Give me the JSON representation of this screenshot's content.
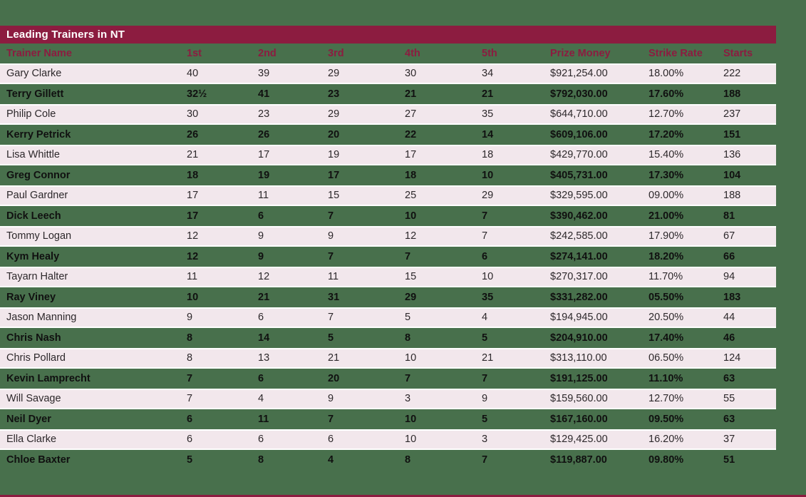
{
  "title_bar": {
    "title": "Leading Trainers in NT"
  },
  "colors": {
    "background": "#48704C",
    "accent": "#8C1C40",
    "row_alt": "#F2E7EC",
    "title_text": "#FFFFFF"
  },
  "chart_data": {
    "type": "table",
    "title": "Leading Trainers in NT",
    "columns": [
      "Trainer Name",
      "1st",
      "2nd",
      "3rd",
      "4th",
      "5th",
      "Prize Money",
      "Strike Rate",
      "Starts"
    ],
    "rows": [
      [
        "Gary Clarke",
        "40",
        "39",
        "29",
        "30",
        "34",
        "$921,254.00",
        "18.00%",
        "222"
      ],
      [
        "Terry Gillett",
        "32½",
        "41",
        "23",
        "21",
        "21",
        "$792,030.00",
        "17.60%",
        "188"
      ],
      [
        "Philip Cole",
        "30",
        "23",
        "29",
        "27",
        "35",
        "$644,710.00",
        "12.70%",
        "237"
      ],
      [
        "Kerry Petrick",
        "26",
        "26",
        "20",
        "22",
        "14",
        "$609,106.00",
        "17.20%",
        "151"
      ],
      [
        "Lisa Whittle",
        "21",
        "17",
        "19",
        "17",
        "18",
        "$429,770.00",
        "15.40%",
        "136"
      ],
      [
        "Greg Connor",
        "18",
        "19",
        "17",
        "18",
        "10",
        "$405,731.00",
        "17.30%",
        "104"
      ],
      [
        "Paul Gardner",
        "17",
        "11",
        "15",
        "25",
        "29",
        "$329,595.00",
        "09.00%",
        "188"
      ],
      [
        "Dick Leech",
        "17",
        "6",
        "7",
        "10",
        "7",
        "$390,462.00",
        "21.00%",
        "81"
      ],
      [
        "Tommy Logan",
        "12",
        "9",
        "9",
        "12",
        "7",
        "$242,585.00",
        "17.90%",
        "67"
      ],
      [
        "Kym Healy",
        "12",
        "9",
        "7",
        "7",
        "6",
        "$274,141.00",
        "18.20%",
        "66"
      ],
      [
        "Tayarn Halter",
        "11",
        "12",
        "11",
        "15",
        "10",
        "$270,317.00",
        "11.70%",
        "94"
      ],
      [
        "Ray Viney",
        "10",
        "21",
        "31",
        "29",
        "35",
        "$331,282.00",
        "05.50%",
        "183"
      ],
      [
        "Jason Manning",
        "9",
        "6",
        "7",
        "5",
        "4",
        "$194,945.00",
        "20.50%",
        "44"
      ],
      [
        "Chris Nash",
        "8",
        "14",
        "5",
        "8",
        "5",
        "$204,910.00",
        "17.40%",
        "46"
      ],
      [
        "Chris Pollard",
        "8",
        "13",
        "21",
        "10",
        "21",
        "$313,110.00",
        "06.50%",
        "124"
      ],
      [
        "Kevin Lamprecht",
        "7",
        "6",
        "20",
        "7",
        "7",
        "$191,125.00",
        "11.10%",
        "63"
      ],
      [
        "Will Savage",
        "7",
        "4",
        "9",
        "3",
        "9",
        "$159,560.00",
        "12.70%",
        "55"
      ],
      [
        "Neil Dyer",
        "6",
        "11",
        "7",
        "10",
        "5",
        "$167,160.00",
        "09.50%",
        "63"
      ],
      [
        "Ella Clarke",
        "6",
        "6",
        "6",
        "10",
        "3",
        "$129,425.00",
        "16.20%",
        "37"
      ],
      [
        "Chloe Baxter",
        "5",
        "8",
        "4",
        "8",
        "7",
        "$119,887.00",
        "09.80%",
        "51"
      ]
    ]
  }
}
